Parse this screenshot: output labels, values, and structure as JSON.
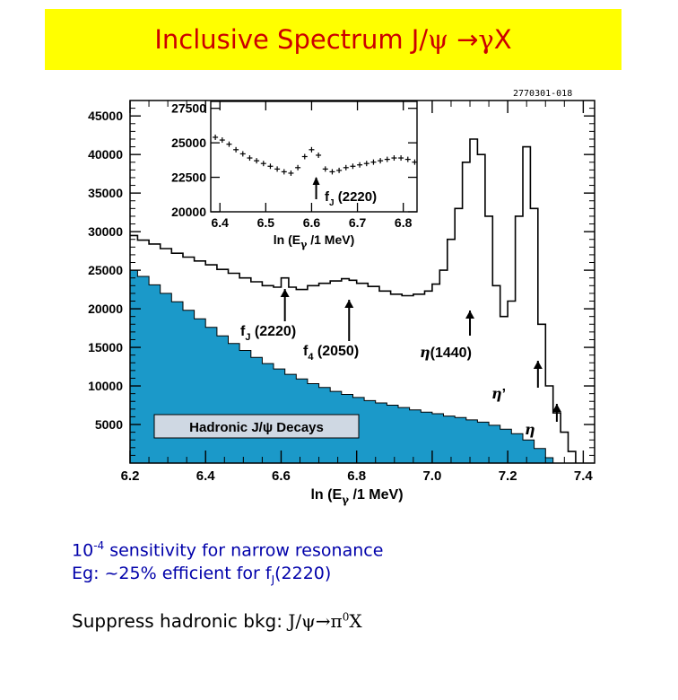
{
  "title": {
    "prefix": "Inclusive Spectrum J/",
    "psi": "ψ",
    "arrow": " →",
    "gamma": "γ",
    "suffix": "X"
  },
  "figure_ref": "2770301-018",
  "colors": {
    "banner_bg": "#ffff00",
    "title_text": "#cc0000",
    "bkg_fill": "#1b99c9",
    "bullet_text": "#0000aa"
  },
  "bullets": {
    "line1_base": "10",
    "line1_exp": "-4",
    "line1_rest": " sensitivity for narrow resonance",
    "line2_prefix": "Eg: ~25% efficient for f",
    "line2_sub": "J",
    "line2_suffix": "(2220)"
  },
  "footer": {
    "prefix": "Suppress hadronic bkg: ",
    "math_a": "J/ψ→π",
    "math_sup": "0",
    "math_b": "X"
  },
  "chart_data": [
    {
      "type": "line",
      "xlabel": "ln (E",
      "xlabel_sub": "γ",
      "xlabel_end": " /1 MeV)",
      "xlim": [
        6.2,
        7.43
      ],
      "ylim": [
        0,
        47000
      ],
      "x_ticks": [
        "6.2",
        "6.4",
        "6.6",
        "6.8",
        "7.0",
        "7.2",
        "7.4"
      ],
      "y_ticks": [
        "5000",
        "10000",
        "15000",
        "20000",
        "25000",
        "30000",
        "35000",
        "40000",
        "45000"
      ],
      "series": [
        {
          "role": "total",
          "style": "step",
          "x": [
            6.2,
            6.22,
            6.25,
            6.28,
            6.31,
            6.34,
            6.37,
            6.4,
            6.43,
            6.46,
            6.49,
            6.52,
            6.55,
            6.58,
            6.6,
            6.62,
            6.64,
            6.67,
            6.7,
            6.73,
            6.76,
            6.78,
            6.8,
            6.83,
            6.86,
            6.89,
            6.92,
            6.95,
            6.98,
            7.0,
            7.02,
            7.04,
            7.06,
            7.08,
            7.1,
            7.12,
            7.14,
            7.16,
            7.18,
            7.2,
            7.22,
            7.24,
            7.26,
            7.28,
            7.3,
            7.32,
            7.34,
            7.36,
            7.38
          ],
          "y": [
            29500,
            28900,
            28400,
            27800,
            27200,
            26700,
            26200,
            25700,
            25100,
            24600,
            24000,
            23500,
            23000,
            22800,
            24000,
            22800,
            22500,
            23000,
            23300,
            23600,
            23900,
            23700,
            23300,
            22900,
            22300,
            21900,
            21700,
            21900,
            22300,
            23200,
            25000,
            29000,
            33000,
            39000,
            42000,
            40000,
            32000,
            23000,
            19000,
            21000,
            32000,
            41000,
            33000,
            18000,
            10000,
            6500,
            4000,
            1500,
            0
          ]
        },
        {
          "role": "hadronic_background",
          "style": "filled_step",
          "x": [
            6.2,
            6.22,
            6.25,
            6.28,
            6.31,
            6.34,
            6.37,
            6.4,
            6.43,
            6.46,
            6.49,
            6.52,
            6.55,
            6.58,
            6.61,
            6.64,
            6.67,
            6.7,
            6.73,
            6.76,
            6.79,
            6.82,
            6.85,
            6.88,
            6.91,
            6.94,
            6.97,
            7.0,
            7.03,
            7.06,
            7.09,
            7.12,
            7.15,
            7.18,
            7.21,
            7.24,
            7.27,
            7.3,
            7.32
          ],
          "y": [
            25000,
            24200,
            23100,
            22000,
            20900,
            19800,
            18700,
            17600,
            16500,
            15500,
            14600,
            13700,
            12900,
            12200,
            11500,
            10900,
            10300,
            9800,
            9300,
            8900,
            8500,
            8100,
            7800,
            7500,
            7200,
            6900,
            6600,
            6400,
            6100,
            5900,
            5600,
            5300,
            4900,
            4400,
            3800,
            3000,
            1900,
            700,
            0
          ]
        }
      ],
      "legend_box": "Hadronic J/ψ  Decays",
      "annotations": [
        {
          "name": "fJ",
          "label": "f",
          "sub": "J",
          "suffix": " (2220)",
          "x": 6.61
        },
        {
          "name": "f4",
          "label": "f",
          "sub": "4",
          "suffix": " (2050)",
          "x": 6.78
        },
        {
          "name": "eta1440",
          "label": "η",
          "sub": "",
          "suffix": "(1440)",
          "x": 7.1
        },
        {
          "name": "etaprime",
          "label": "η",
          "sub": "",
          "suffix": "’",
          "x": 7.28
        },
        {
          "name": "eta",
          "label": "η",
          "sub": "",
          "suffix": "",
          "x": 7.33
        }
      ]
    },
    {
      "type": "scatter",
      "role": "inset",
      "xlabel": "ln (E",
      "xlabel_sub": "γ",
      "xlabel_end": " /1 MeV)",
      "xlim": [
        6.38,
        6.83
      ],
      "ylim": [
        20000,
        28000
      ],
      "x_ticks": [
        "6.4",
        "6.5",
        "6.6",
        "6.7",
        "6.8"
      ],
      "y_ticks": [
        "20000",
        "22500",
        "25000",
        "27500"
      ],
      "x": [
        6.39,
        6.405,
        6.42,
        6.435,
        6.45,
        6.465,
        6.48,
        6.495,
        6.51,
        6.525,
        6.54,
        6.555,
        6.57,
        6.585,
        6.6,
        6.615,
        6.63,
        6.645,
        6.66,
        6.675,
        6.69,
        6.705,
        6.72,
        6.735,
        6.75,
        6.765,
        6.78,
        6.795,
        6.81,
        6.825
      ],
      "y": [
        25400,
        25200,
        24900,
        24500,
        24200,
        23900,
        23700,
        23500,
        23300,
        23100,
        22900,
        22800,
        23200,
        24000,
        24500,
        24100,
        23100,
        22900,
        23000,
        23200,
        23300,
        23400,
        23500,
        23600,
        23700,
        23800,
        23900,
        23900,
        23800,
        23600
      ],
      "annotations": [
        {
          "name": "fJ_inset",
          "label": "f",
          "sub": "J",
          "suffix": " (2220)",
          "x": 6.61
        }
      ]
    }
  ]
}
